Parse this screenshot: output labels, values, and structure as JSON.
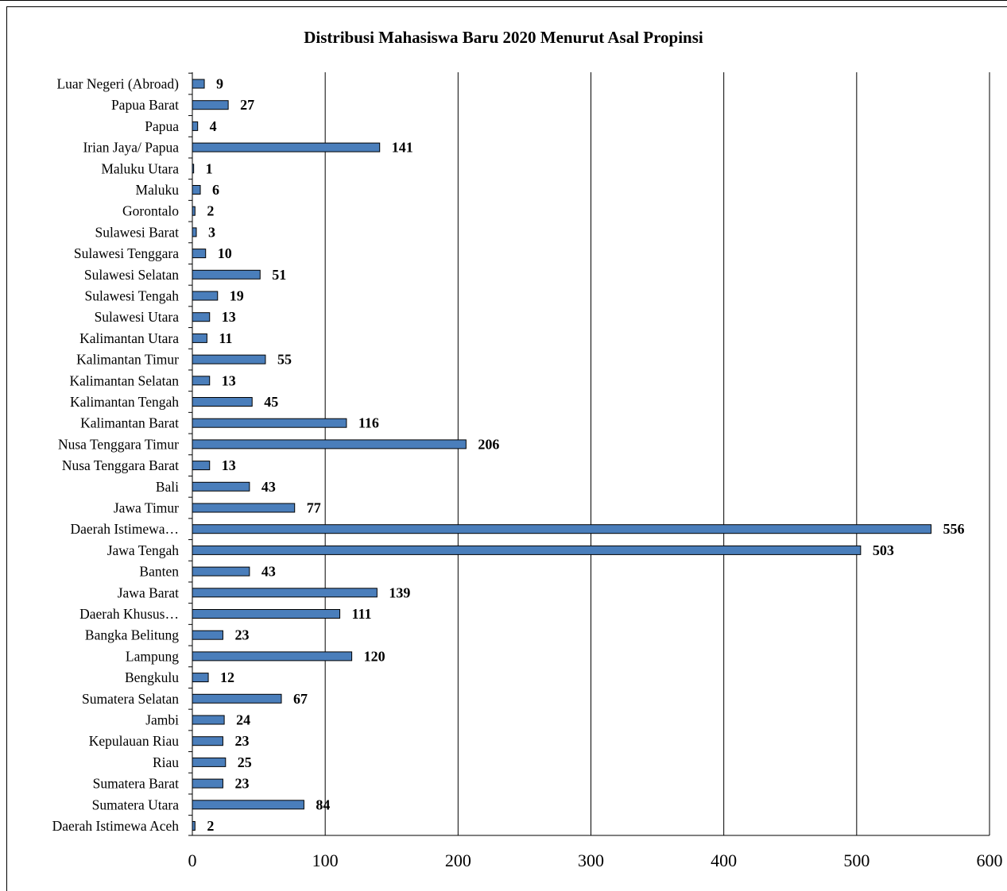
{
  "chart_data": {
    "type": "bar",
    "orientation": "horizontal",
    "title": "Distribusi Mahasiswa Baru 2020 Menurut Asal Propinsi",
    "xlabel": "",
    "ylabel": "",
    "xlim": [
      0,
      600
    ],
    "x_ticks": [
      "0",
      "100",
      "200",
      "300",
      "400",
      "500",
      "600"
    ],
    "grid": "vertical",
    "bar_color": "#4a7ebb",
    "categories": [
      "Luar Negeri (Abroad)",
      "Papua Barat",
      "Papua",
      "Irian Jaya/ Papua",
      "Maluku Utara",
      "Maluku",
      "Gorontalo",
      "Sulawesi Barat",
      "Sulawesi Tenggara",
      "Sulawesi Selatan",
      "Sulawesi Tengah",
      "Sulawesi Utara",
      "Kalimantan Utara",
      "Kalimantan Timur",
      "Kalimantan Selatan",
      "Kalimantan Tengah",
      "Kalimantan Barat",
      "Nusa Tenggara Timur",
      "Nusa Tenggara Barat",
      "Bali",
      "Jawa Timur",
      "Daerah Istimewa…",
      "Jawa Tengah",
      "Banten",
      "Jawa Barat",
      "Daerah Khusus…",
      "Bangka Belitung",
      "Lampung",
      "Bengkulu",
      "Sumatera Selatan",
      "Jambi",
      "Kepulauan Riau",
      "Riau",
      "Sumatera Barat",
      "Sumatera Utara",
      "Daerah Istimewa Aceh"
    ],
    "values": [
      9,
      27,
      4,
      141,
      1,
      6,
      2,
      3,
      10,
      51,
      19,
      13,
      11,
      55,
      13,
      45,
      116,
      206,
      13,
      43,
      77,
      556,
      503,
      43,
      139,
      111,
      23,
      120,
      12,
      67,
      24,
      23,
      25,
      23,
      84,
      2
    ]
  }
}
